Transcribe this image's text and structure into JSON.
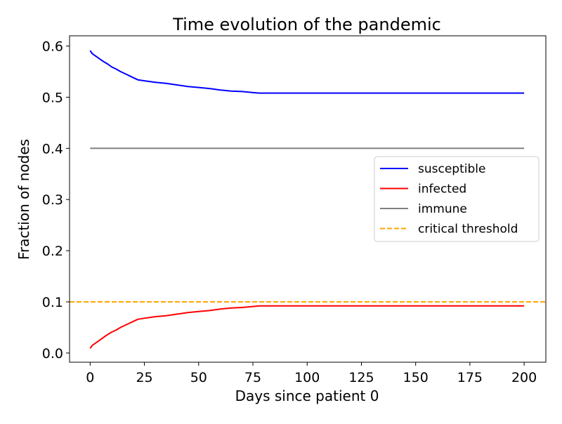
{
  "chart_data": {
    "type": "line",
    "title": "Time evolution of the pandemic",
    "xlabel": "Days since patient 0",
    "ylabel": "Fraction of nodes",
    "xlim": [
      -9.5,
      210
    ],
    "ylim": [
      -0.018,
      0.62
    ],
    "x_ticks": [
      0,
      25,
      50,
      75,
      100,
      125,
      150,
      175,
      200
    ],
    "y_ticks": [
      0.0,
      0.1,
      0.2,
      0.3,
      0.4,
      0.5,
      0.6
    ],
    "x_tick_labels": [
      "0",
      "25",
      "50",
      "75",
      "100",
      "125",
      "150",
      "175",
      "200"
    ],
    "y_tick_labels": [
      "0.0",
      "0.1",
      "0.2",
      "0.3",
      "0.4",
      "0.5",
      "0.6"
    ],
    "grid": false,
    "legend_position": "center-right",
    "series": [
      {
        "name": "susceptible",
        "color": "#0000ff",
        "style": "solid",
        "x": [
          0,
          1,
          2,
          4,
          6,
          8,
          10,
          12,
          14,
          16,
          18,
          20,
          22,
          25,
          30,
          35,
          40,
          45,
          50,
          55,
          60,
          65,
          70,
          75,
          78,
          80,
          100,
          125,
          150,
          175,
          200
        ],
        "y": [
          0.591,
          0.585,
          0.582,
          0.576,
          0.57,
          0.565,
          0.559,
          0.555,
          0.55,
          0.546,
          0.542,
          0.538,
          0.534,
          0.532,
          0.529,
          0.527,
          0.524,
          0.521,
          0.519,
          0.517,
          0.514,
          0.512,
          0.511,
          0.509,
          0.508,
          0.508,
          0.508,
          0.508,
          0.508,
          0.508,
          0.508
        ]
      },
      {
        "name": "infected",
        "color": "#ff0000",
        "style": "solid",
        "x": [
          0,
          1,
          2,
          4,
          6,
          8,
          10,
          12,
          14,
          16,
          18,
          20,
          22,
          25,
          30,
          35,
          40,
          45,
          50,
          55,
          60,
          65,
          70,
          75,
          78,
          80,
          100,
          125,
          150,
          175,
          200
        ],
        "y": [
          0.009,
          0.015,
          0.018,
          0.024,
          0.03,
          0.036,
          0.041,
          0.045,
          0.05,
          0.054,
          0.058,
          0.062,
          0.066,
          0.068,
          0.071,
          0.073,
          0.076,
          0.079,
          0.081,
          0.083,
          0.086,
          0.088,
          0.089,
          0.091,
          0.092,
          0.092,
          0.092,
          0.092,
          0.092,
          0.092,
          0.092
        ]
      },
      {
        "name": "immune",
        "color": "#808080",
        "style": "solid",
        "x": [
          0,
          200
        ],
        "y": [
          0.4,
          0.4
        ]
      },
      {
        "name": "critical threshold",
        "color": "#ffa500",
        "style": "dashed",
        "x": [
          -9.5,
          210
        ],
        "y": [
          0.1,
          0.1
        ]
      }
    ]
  }
}
